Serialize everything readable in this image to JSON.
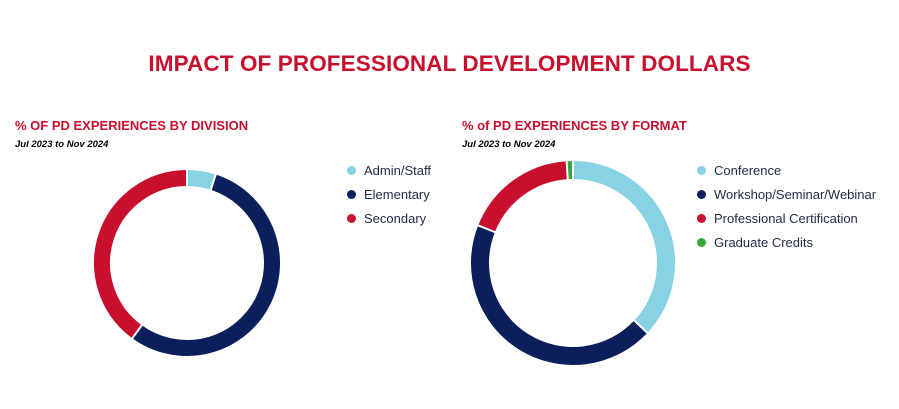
{
  "page": {
    "title": "IMPACT OF PROFESSIONAL DEVELOPMENT DOLLARS"
  },
  "colors": {
    "title": "#c8102e",
    "light_blue": "#87d3e5",
    "navy": "#0a1f5c",
    "red": "#c8102e",
    "green": "#3aa53c"
  },
  "chart_data": [
    {
      "type": "pie",
      "style": "donut",
      "title": "% OF PD EXPERIENCES BY DIVISION",
      "subtitle": "Jul 2023 to Nov 2024",
      "legend_position": "right",
      "slices": [
        {
          "label": "Admin/Staff",
          "value": 5,
          "color": "#87d3e5"
        },
        {
          "label": "Elementary",
          "value": 55,
          "color": "#0a1f5c"
        },
        {
          "label": "Secondary",
          "value": 40,
          "color": "#c8102e"
        }
      ]
    },
    {
      "type": "pie",
      "style": "donut",
      "title": "% of PD EXPERIENCES BY FORMAT",
      "subtitle": "Jul 2023 to Nov 2024",
      "legend_position": "right",
      "slices": [
        {
          "label": "Conference",
          "value": 37,
          "color": "#87d3e5"
        },
        {
          "label": "Workshop/Seminar/Webinar",
          "value": 44,
          "color": "#0a1f5c"
        },
        {
          "label": "Professional Certification",
          "value": 18,
          "color": "#c8102e"
        },
        {
          "label": "Graduate Credits",
          "value": 1,
          "color": "#3aa53c"
        }
      ]
    }
  ]
}
